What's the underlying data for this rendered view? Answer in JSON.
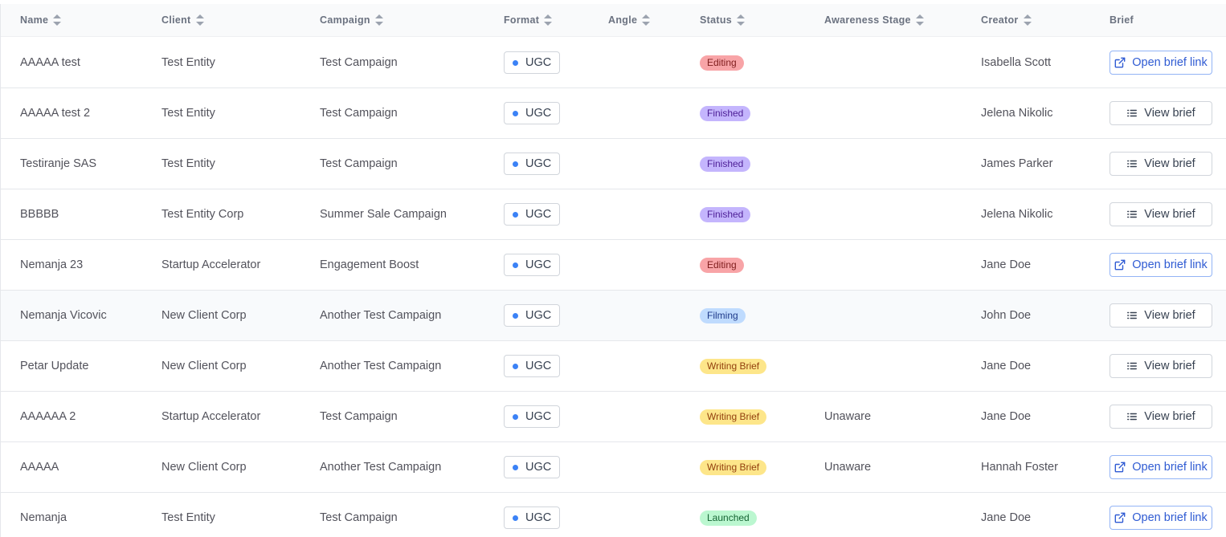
{
  "columns": {
    "name": "Name",
    "client": "Client",
    "campaign": "Campaign",
    "format": "Format",
    "angle": "Angle",
    "status": "Status",
    "awareness": "Awareness Stage",
    "creator": "Creator",
    "brief": "Brief"
  },
  "rows": [
    {
      "name": "AAAAA test",
      "client": "Test Entity",
      "campaign": "Test Campaign",
      "format": "UGC",
      "angle": "",
      "status": "Editing",
      "status_kind": "editing",
      "awareness": "",
      "creator": "Isabella Scott",
      "brief_type": "link",
      "brief_label": "Open brief link"
    },
    {
      "name": "AAAAA test 2",
      "client": "Test Entity",
      "campaign": "Test Campaign",
      "format": "UGC",
      "angle": "",
      "status": "Finished",
      "status_kind": "finished",
      "awareness": "",
      "creator": "Jelena Nikolic",
      "brief_type": "view",
      "brief_label": "View brief"
    },
    {
      "name": "Testiranje SAS",
      "client": "Test Entity",
      "campaign": "Test Campaign",
      "format": "UGC",
      "angle": "",
      "status": "Finished",
      "status_kind": "finished",
      "awareness": "",
      "creator": "James Parker",
      "brief_type": "view",
      "brief_label": "View brief"
    },
    {
      "name": "BBBBB",
      "client": "Test Entity Corp",
      "campaign": "Summer Sale Campaign",
      "format": "UGC",
      "angle": "",
      "status": "Finished",
      "status_kind": "finished",
      "awareness": "",
      "creator": "Jelena Nikolic",
      "brief_type": "view",
      "brief_label": "View brief"
    },
    {
      "name": "Nemanja 23",
      "client": "Startup Accelerator",
      "campaign": "Engagement Boost",
      "format": "UGC",
      "angle": "",
      "status": "Editing",
      "status_kind": "editing",
      "awareness": "",
      "creator": "Jane Doe",
      "brief_type": "link",
      "brief_label": "Open brief link"
    },
    {
      "name": "Nemanja Vicovic",
      "client": "New Client Corp",
      "campaign": "Another Test Campaign",
      "format": "UGC",
      "angle": "",
      "status": "Filming",
      "status_kind": "filming",
      "awareness": "",
      "creator": "John Doe",
      "brief_type": "view",
      "brief_label": "View brief"
    },
    {
      "name": "Petar Update",
      "client": "New Client Corp",
      "campaign": "Another Test Campaign",
      "format": "UGC",
      "angle": "",
      "status": "Writing Brief",
      "status_kind": "writing",
      "awareness": "",
      "creator": "Jane Doe",
      "brief_type": "view",
      "brief_label": "View brief"
    },
    {
      "name": "AAAAAA 2",
      "client": "Startup Accelerator",
      "campaign": "Test Campaign",
      "format": "UGC",
      "angle": "",
      "status": "Writing Brief",
      "status_kind": "writing",
      "awareness": "Unaware",
      "creator": "Jane Doe",
      "brief_type": "view",
      "brief_label": "View brief"
    },
    {
      "name": "AAAAA",
      "client": "New Client Corp",
      "campaign": "Another Test Campaign",
      "format": "UGC",
      "angle": "",
      "status": "Writing Brief",
      "status_kind": "writing",
      "awareness": "Unaware",
      "creator": "Hannah Foster",
      "brief_type": "link",
      "brief_label": "Open brief link"
    },
    {
      "name": "Nemanja",
      "client": "Test Entity",
      "campaign": "Test Campaign",
      "format": "UGC",
      "angle": "",
      "status": "Launched",
      "status_kind": "launched",
      "awareness": "",
      "creator": "Jane Doe",
      "brief_type": "link",
      "brief_label": "Open brief link"
    }
  ],
  "hovered_row": 5,
  "colors": {
    "format_dot": "#3b82f6",
    "link_button": "#2f5bd3",
    "editing": "#f8a4a7",
    "finished": "#c4b5fd",
    "filming": "#bfdbfe",
    "writing": "#fde68a",
    "launched": "#bbf7d0"
  },
  "icons": {
    "sort": "sort-icon",
    "external_link": "external-link-icon",
    "list": "list-icon"
  }
}
